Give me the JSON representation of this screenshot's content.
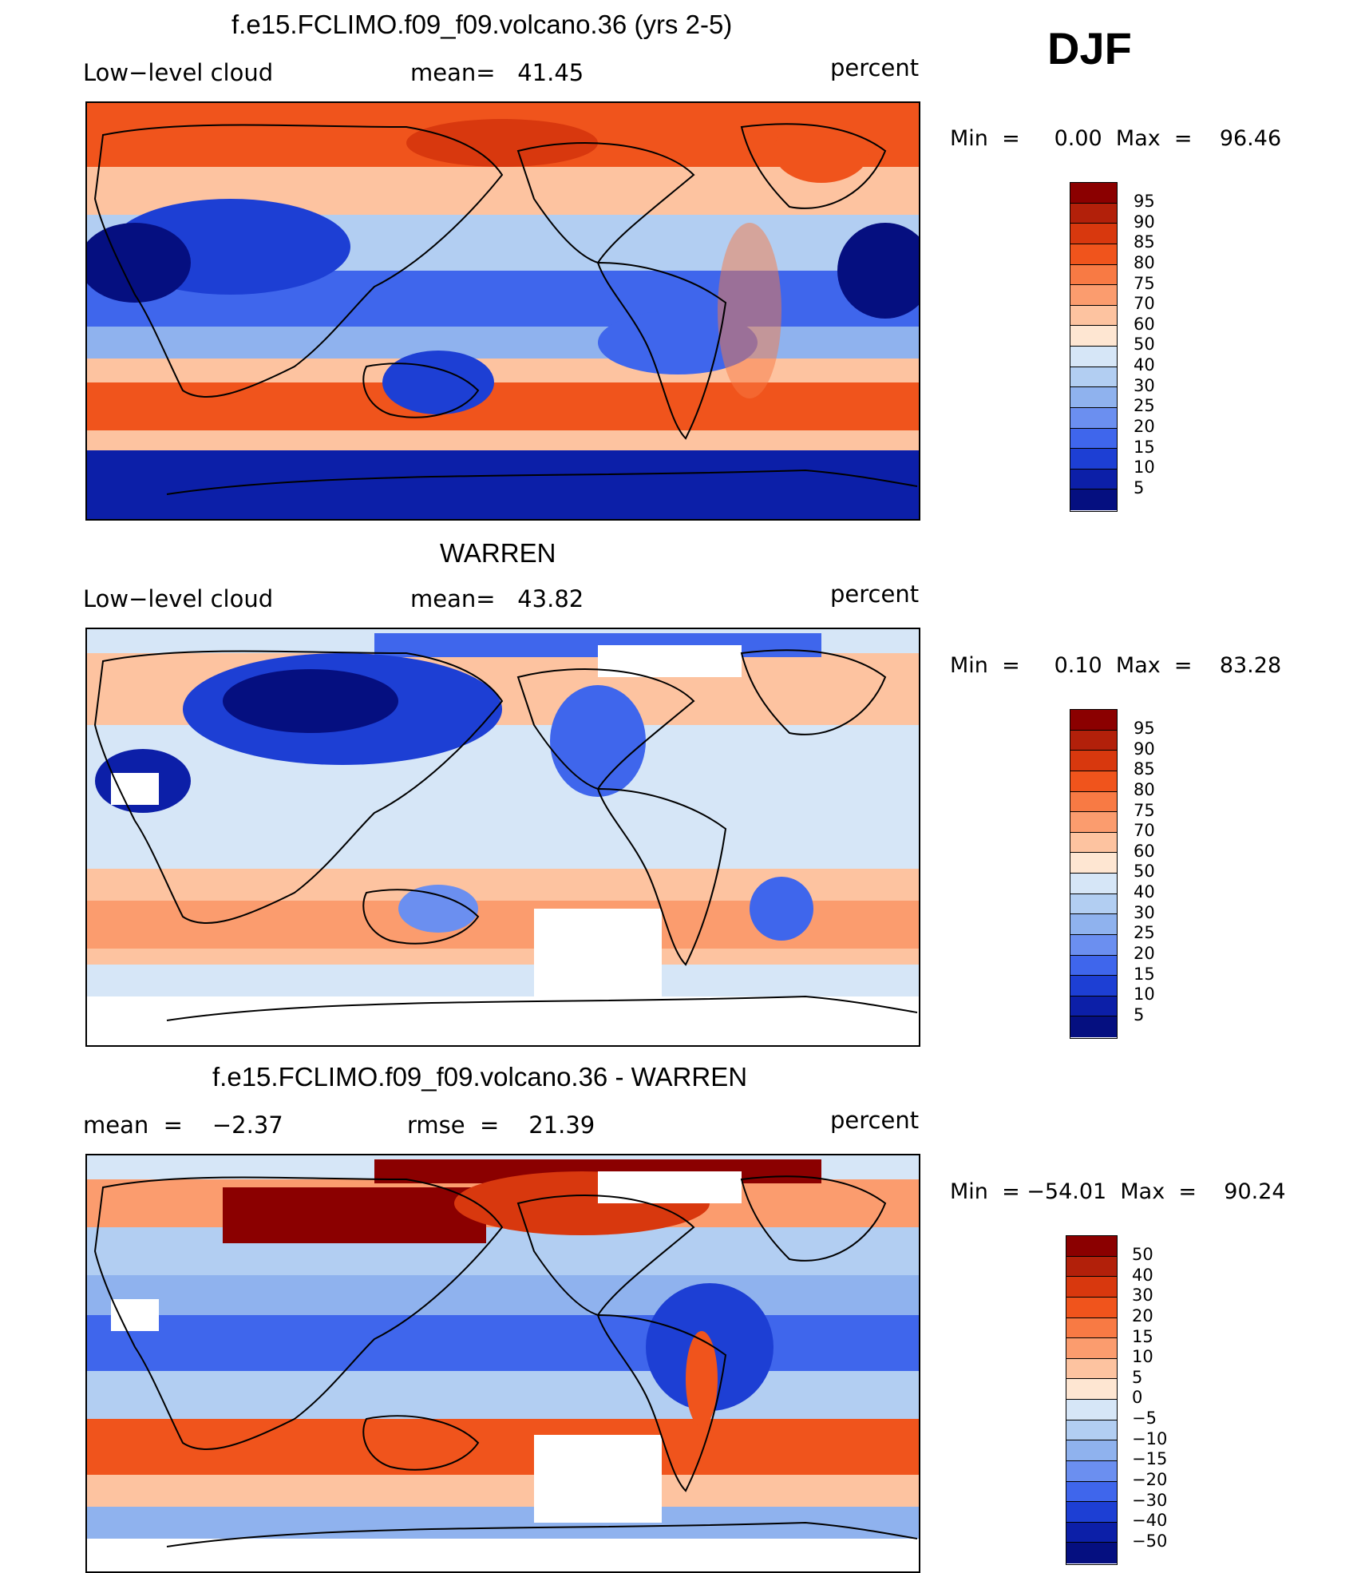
{
  "season": "DJF",
  "panels": [
    {
      "title": "f.e15.FCLIMO.f09_f09.volcano.36 (yrs 2-5)",
      "left_label": "Low−level cloud",
      "mid_label": "mean=   41.45",
      "right_label": "percent",
      "minmax": "Min  =     0.00  Max  =    96.46",
      "colorbar": {
        "labels": [
          "95",
          "90",
          "85",
          "80",
          "75",
          "70",
          "60",
          "50",
          "40",
          "30",
          "25",
          "20",
          "15",
          "10",
          "5"
        ],
        "colors": [
          "#8b0000",
          "#b2200a",
          "#d8380e",
          "#f0541c",
          "#f87a44",
          "#fb9c6e",
          "#fdc3a0",
          "#fee6d2",
          "#d6e6f7",
          "#b2cef2",
          "#8fb2ee",
          "#6b8ff0",
          "#3f66ec",
          "#1d3fd4",
          "#0c1fa8",
          "#050f80"
        ]
      },
      "field": {
        "lands_visible": true,
        "gaps": false
      }
    },
    {
      "title": "WARREN",
      "left_label": "Low−level cloud",
      "mid_label": "mean=   43.82",
      "right_label": "percent",
      "minmax": "Min  =     0.10  Max  =    83.28",
      "colorbar": {
        "labels": [
          "95",
          "90",
          "85",
          "80",
          "75",
          "70",
          "60",
          "50",
          "40",
          "30",
          "25",
          "20",
          "15",
          "10",
          "5"
        ],
        "colors": [
          "#8b0000",
          "#b2200a",
          "#d8380e",
          "#f0541c",
          "#f87a44",
          "#fb9c6e",
          "#fdc3a0",
          "#fee6d2",
          "#d6e6f7",
          "#b2cef2",
          "#8fb2ee",
          "#6b8ff0",
          "#3f66ec",
          "#1d3fd4",
          "#0c1fa8",
          "#050f80"
        ]
      },
      "field": {
        "lands_visible": true,
        "gaps": true
      }
    },
    {
      "title": "f.e15.FCLIMO.f09_f09.volcano.36 - WARREN",
      "left_label": "mean  =    −2.37",
      "mid_label": "rmse  =    21.39",
      "right_label": "percent",
      "minmax": "Min  = −54.01  Max  =    90.24",
      "colorbar": {
        "labels": [
          "50",
          "40",
          "30",
          "20",
          "15",
          "10",
          "5",
          "0",
          "−5",
          "−10",
          "−15",
          "−20",
          "−30",
          "−40",
          "−50"
        ],
        "colors": [
          "#8b0000",
          "#b2200a",
          "#d8380e",
          "#f0541c",
          "#f87a44",
          "#fb9c6e",
          "#fdc3a0",
          "#fee6d2",
          "#d6e6f7",
          "#b2cef2",
          "#8fb2ee",
          "#6b8ff0",
          "#3f66ec",
          "#1d3fd4",
          "#0c1fa8",
          "#050f80"
        ]
      },
      "field": {
        "lands_visible": true,
        "gaps": true
      }
    }
  ]
}
